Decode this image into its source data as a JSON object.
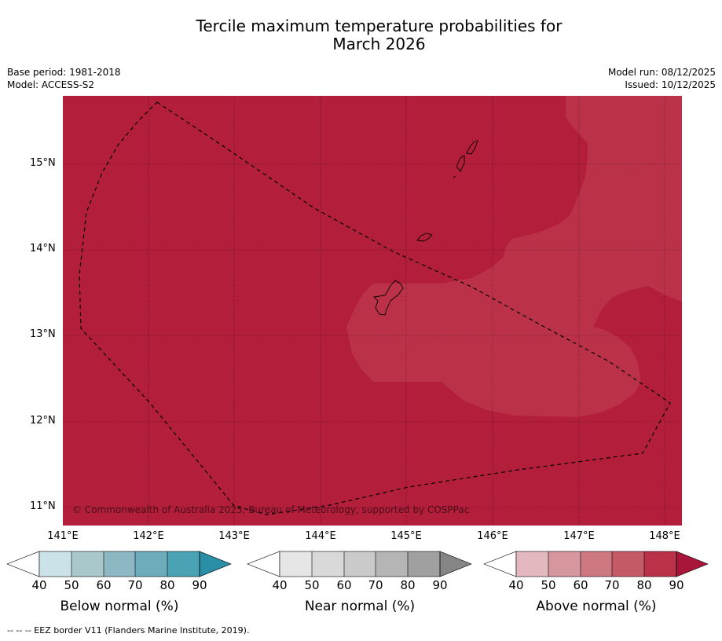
{
  "title_line1": "Tercile maximum temperature probabilities for",
  "title_line2": "March 2026",
  "meta": {
    "base_period": "Base period: 1981-2018",
    "model": "Model: ACCESS-S2",
    "model_run": "Model run: 08/12/2025",
    "issued": "Issued: 10/12/2025"
  },
  "map": {
    "lat_labels": [
      "15°N",
      "14°N",
      "13°N",
      "12°N",
      "11°N"
    ],
    "lon_labels": [
      "141°E",
      "142°E",
      "143°E",
      "144°E",
      "145°E",
      "146°E",
      "147°E",
      "148°E"
    ],
    "copyright": "© Commonwealth of Australia 2025, Bureau of Meteorology, supported by COSPPac",
    "colors": {
      "above_80_90": "#b31e3a",
      "above_70_80": "#bb3248",
      "coastline": "#000000"
    }
  },
  "colorbars": [
    {
      "label": "Below normal (%)",
      "ticks": [
        "40",
        "50",
        "60",
        "70",
        "80",
        "90"
      ],
      "colors": [
        "#ffffff",
        "#cbe3e8",
        "#a8c8cc",
        "#8db8c3",
        "#6eabbb",
        "#4aa3b4",
        "#2a8fa6"
      ]
    },
    {
      "label": "Near normal (%)",
      "ticks": [
        "40",
        "50",
        "60",
        "70",
        "80",
        "90"
      ],
      "colors": [
        "#ffffff",
        "#e6e6e6",
        "#d9d9d9",
        "#cacaca",
        "#b5b5b5",
        "#a0a0a0",
        "#858585"
      ]
    },
    {
      "label": "Above normal (%)",
      "ticks": [
        "40",
        "50",
        "60",
        "70",
        "80",
        "90"
      ],
      "colors": [
        "#ffffff",
        "#e3b8bf",
        "#d6969e",
        "#ce7981",
        "#c55a67",
        "#bb3248",
        "#a8173a"
      ]
    }
  ],
  "footnote": "--  --  -- EEZ border V11 (Flanders Marine Institute, 2019)."
}
